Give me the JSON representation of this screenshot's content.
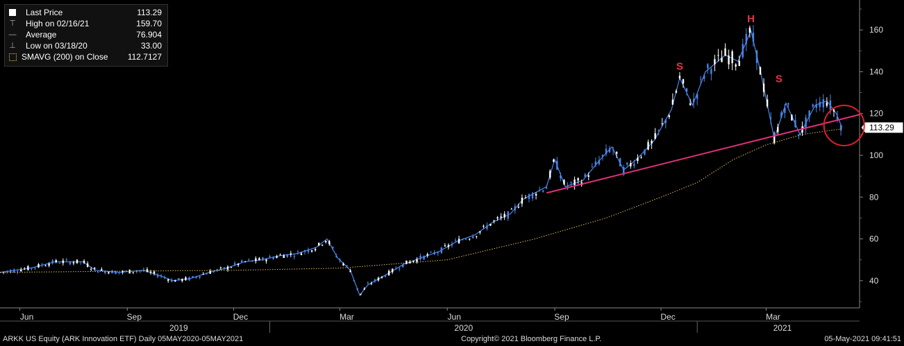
{
  "legend": {
    "items": [
      {
        "icon": "square-icon",
        "label": "Last Price",
        "value": "113.29"
      },
      {
        "icon": "high-marker-icon",
        "label": "High on 02/16/21",
        "value": "159.70"
      },
      {
        "icon": "average-icon",
        "label": "Average",
        "value": "76.904"
      },
      {
        "icon": "low-marker-icon",
        "label": "Low on 03/18/20",
        "value": "33.00"
      },
      {
        "icon": "dotted-square-icon",
        "label": "SMAVG (200)  on Close",
        "value": "112.7127"
      }
    ]
  },
  "last_price_tag": "113.29",
  "annotations": {
    "left_shoulder": "S",
    "head": "H",
    "right_shoulder": "S"
  },
  "footer": {
    "left": "ARKK US Equity (ARK Innovation ETF)  Daily 05MAY2020-05MAY2021",
    "center": "Copyright© 2021 Bloomberg Finance L.P.",
    "right": "05-May-2021 09:41:51"
  },
  "colors": {
    "background": "#000000",
    "price": "#4a86e8",
    "candle_up": "#ffffff",
    "sma": "#e0c060",
    "trendline": "#e0307a",
    "annotation": "#e8334a",
    "circle": "#e0202a"
  },
  "chart_data": {
    "type": "line",
    "title": "",
    "y_axis": {
      "side": "right",
      "ticks": [
        40,
        60,
        80,
        100,
        120,
        140,
        160
      ],
      "range": [
        27,
        173
      ]
    },
    "x_axis": {
      "month_labels": [
        {
          "label": "Jun",
          "date": "2019-06-01"
        },
        {
          "label": "Sep",
          "date": "2019-09-01"
        },
        {
          "label": "Dec",
          "date": "2019-12-01"
        },
        {
          "label": "Mar",
          "date": "2020-03-01"
        },
        {
          "label": "Jun",
          "date": "2020-06-01"
        },
        {
          "label": "Sep",
          "date": "2020-09-01"
        },
        {
          "label": "Dec",
          "date": "2020-12-01"
        },
        {
          "label": "Mar",
          "date": "2021-03-01"
        }
      ],
      "year_labels": [
        {
          "label": "2019",
          "date": "2019-10-15"
        },
        {
          "label": "2020",
          "date": "2020-06-15"
        },
        {
          "label": "2021",
          "date": "2021-03-15"
        }
      ],
      "range": [
        "2019-05-15",
        "2021-05-20"
      ]
    },
    "series": [
      {
        "key": "price",
        "x": [
          "2019-05-15",
          "2019-06-10",
          "2019-07-01",
          "2019-07-25",
          "2019-08-05",
          "2019-08-25",
          "2019-09-15",
          "2019-10-01",
          "2019-10-10",
          "2019-10-25",
          "2019-11-10",
          "2019-11-25",
          "2019-12-10",
          "2019-12-25",
          "2020-01-10",
          "2020-01-25",
          "2020-02-10",
          "2020-02-19",
          "2020-02-28",
          "2020-03-10",
          "2020-03-18",
          "2020-03-25",
          "2020-04-10",
          "2020-04-25",
          "2020-05-10",
          "2020-05-25",
          "2020-06-10",
          "2020-06-25",
          "2020-07-10",
          "2020-07-25",
          "2020-08-05",
          "2020-08-25",
          "2020-09-01",
          "2020-09-10",
          "2020-09-25",
          "2020-10-10",
          "2020-10-20",
          "2020-10-30",
          "2020-11-10",
          "2020-11-25",
          "2020-12-10",
          "2020-12-17",
          "2020-12-28",
          "2021-01-08",
          "2021-01-25",
          "2021-02-05",
          "2021-02-16",
          "2021-02-25",
          "2021-03-08",
          "2021-03-18",
          "2021-03-30",
          "2021-04-12",
          "2021-04-22",
          "2021-04-30",
          "2021-05-05"
        ],
        "y": [
          44,
          46,
          49,
          49,
          45,
          44,
          45,
          42,
          40,
          41,
          44,
          46,
          49,
          50,
          52,
          53,
          56,
          60,
          51,
          45,
          33,
          38,
          43,
          48,
          51,
          54,
          59,
          62,
          68,
          72,
          79,
          85,
          98,
          85,
          88,
          98,
          104,
          93,
          98,
          107,
          122,
          137,
          124,
          140,
          148,
          145,
          159.7,
          138,
          108,
          125,
          110,
          124,
          126,
          120,
          113.29
        ]
      },
      {
        "key": "sma200",
        "x": [
          "2019-05-15",
          "2019-08-15",
          "2019-12-01",
          "2020-03-01",
          "2020-06-01",
          "2020-08-15",
          "2020-10-15",
          "2020-12-01",
          "2021-01-01",
          "2021-02-01",
          "2021-03-01",
          "2021-04-01",
          "2021-05-05"
        ],
        "y": [
          44,
          44.5,
          45,
          46,
          50,
          60,
          70,
          80,
          87,
          98,
          105,
          110,
          112.71
        ]
      },
      {
        "key": "trendline",
        "x": [
          "2020-08-25",
          "2021-05-20"
        ],
        "y": [
          82,
          119.5
        ]
      }
    ]
  }
}
